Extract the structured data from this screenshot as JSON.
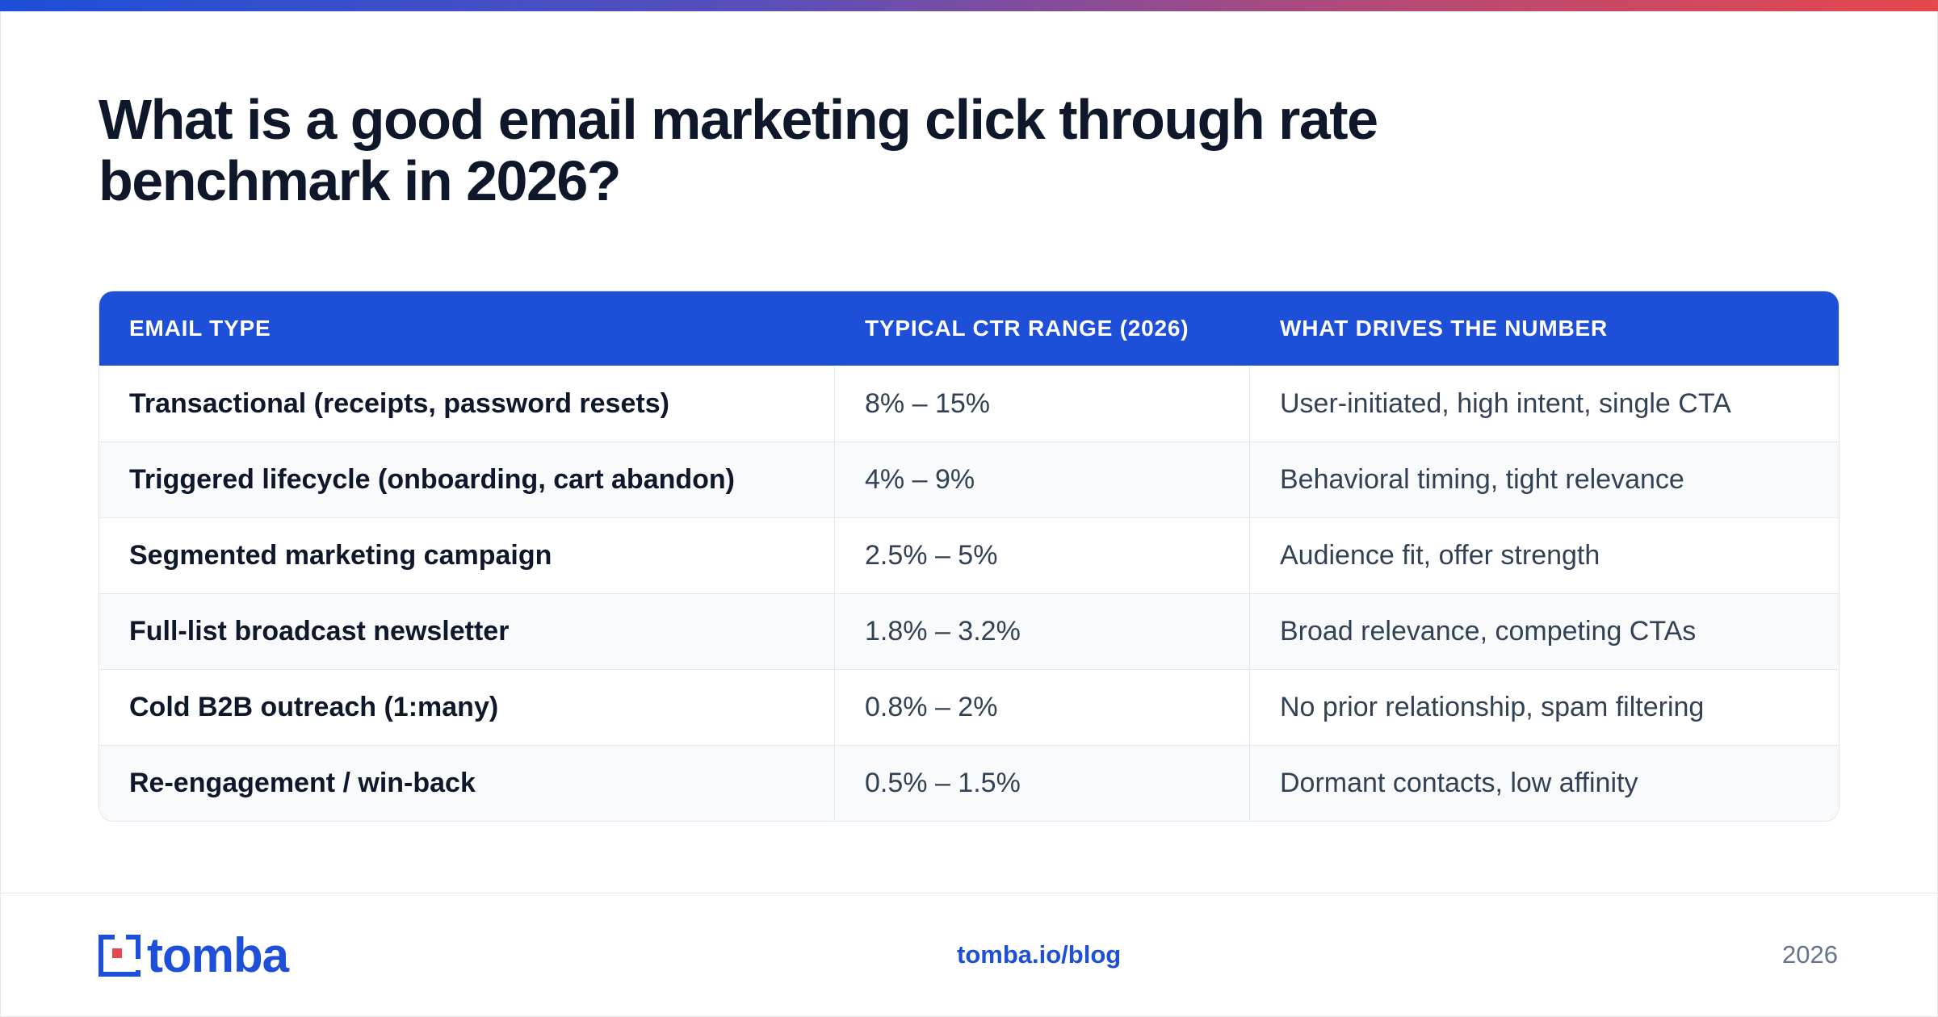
{
  "title": "What is a good email marketing click through rate benchmark in 2026?",
  "table": {
    "headers": [
      "EMAIL TYPE",
      "TYPICAL CTR RANGE (2026)",
      "WHAT DRIVES THE NUMBER"
    ],
    "rows": [
      [
        "Transactional (receipts, password resets)",
        "8% – 15%",
        "User-initiated, high intent, single CTA"
      ],
      [
        "Triggered lifecycle (onboarding, cart abandon)",
        "4% – 9%",
        "Behavioral timing, tight relevance"
      ],
      [
        "Segmented marketing campaign",
        "2.5% – 5%",
        "Audience fit, offer strength"
      ],
      [
        "Full-list broadcast newsletter",
        "1.8% – 3.2%",
        "Broad relevance, competing CTAs"
      ],
      [
        "Cold B2B outreach (1:many)",
        "0.8% – 2%",
        "No prior relationship, spam filtering"
      ],
      [
        "Re-engagement / win-back",
        "0.5% – 1.5%",
        "Dormant contacts, low affinity"
      ]
    ]
  },
  "footer": {
    "logo_text": "tomba",
    "link": "tomba.io/blog",
    "year": "2026"
  },
  "colors": {
    "accent": "#1d4fd8",
    "logo_red": "#e5484d"
  },
  "icons": {
    "logo": "tomba-logo-icon"
  }
}
